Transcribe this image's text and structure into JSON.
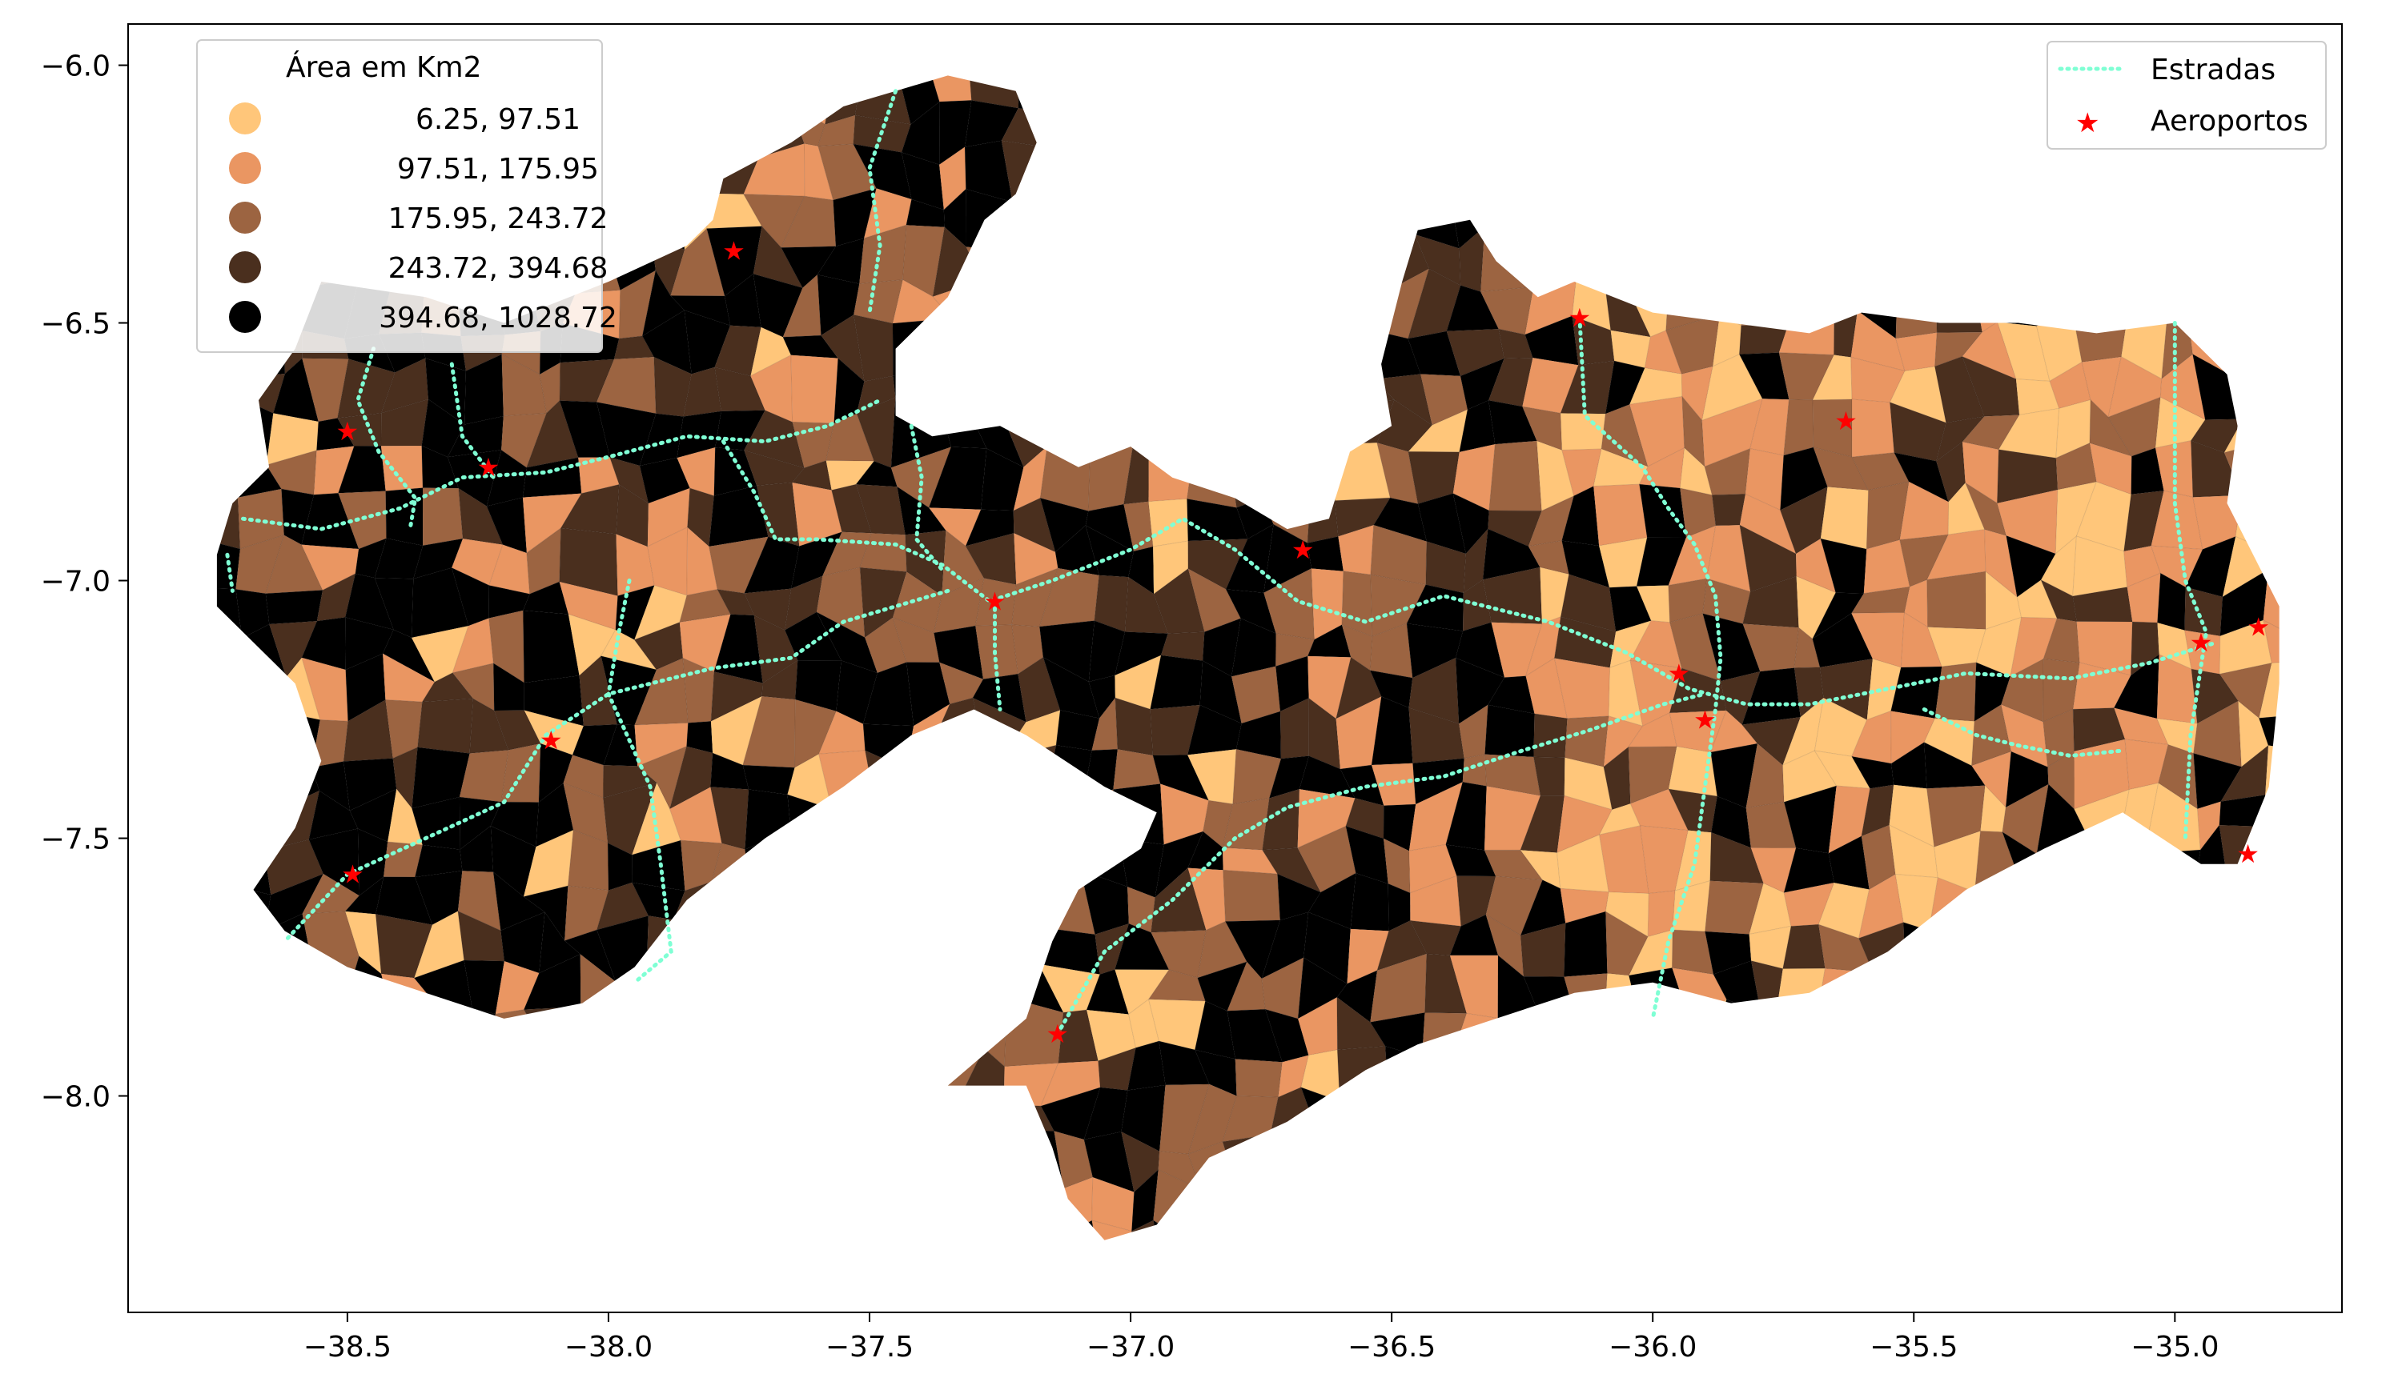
{
  "chart_data": {
    "type": "choropleth-map",
    "x_ticks": [
      -38.5,
      -38.0,
      -37.5,
      -37.0,
      -36.5,
      -36.0,
      -35.5,
      -35.0
    ],
    "x_tick_labels": [
      "−38.5",
      "−38.0",
      "−37.5",
      "−37.0",
      "−36.5",
      "−36.0",
      "−35.5",
      "−35.0"
    ],
    "y_ticks": [
      -6.0,
      -6.5,
      -7.0,
      -7.5,
      -8.0
    ],
    "y_tick_labels": [
      "−6.0",
      "−6.5",
      "−7.0",
      "−7.5",
      "−8.0"
    ],
    "xlim": [
      -38.92,
      -34.68
    ],
    "ylim": [
      -8.42,
      -5.92
    ],
    "colormap": "copper_r",
    "classes_legend": {
      "title": "Área em Km2",
      "position": "top-left",
      "items": [
        {
          "label": "6.25,   97.51",
          "color": "#ffc67a"
        },
        {
          "label": "97.51,  175.95",
          "color": "#ea9662"
        },
        {
          "label": "175.95,  243.72",
          "color": "#9c6441"
        },
        {
          "label": "243.72,  394.68",
          "color": "#4a2f1e"
        },
        {
          "label": "394.68, 1028.72",
          "color": "#000000"
        }
      ]
    },
    "layers_legend": {
      "position": "top-right",
      "items": [
        {
          "label": "Estradas",
          "kind": "dotted-line",
          "color": "#7fffd4"
        },
        {
          "label": "Aeroportos",
          "kind": "star",
          "color": "#ff0000"
        }
      ]
    },
    "airports": [
      {
        "lon": -37.76,
        "lat": -6.36
      },
      {
        "lon": -38.5,
        "lat": -6.71
      },
      {
        "lon": -38.23,
        "lat": -6.78
      },
      {
        "lon": -37.26,
        "lat": -7.04
      },
      {
        "lon": -36.67,
        "lat": -6.94
      },
      {
        "lon": -36.14,
        "lat": -6.49
      },
      {
        "lon": -35.63,
        "lat": -6.69
      },
      {
        "lon": -35.95,
        "lat": -7.18
      },
      {
        "lon": -35.9,
        "lat": -7.27
      },
      {
        "lon": -38.11,
        "lat": -7.31
      },
      {
        "lon": -38.49,
        "lat": -7.57
      },
      {
        "lon": -37.14,
        "lat": -7.88
      },
      {
        "lon": -34.95,
        "lat": -7.12
      },
      {
        "lon": -34.84,
        "lat": -7.09
      },
      {
        "lon": -34.86,
        "lat": -7.53
      }
    ],
    "roads": [
      [
        [
          -38.7,
          -6.88
        ],
        [
          -38.55,
          -6.9
        ],
        [
          -38.4,
          -6.86
        ],
        [
          -38.28,
          -6.8
        ],
        [
          -38.12,
          -6.79
        ],
        [
          -38.0,
          -6.76
        ],
        [
          -37.85,
          -6.72
        ],
        [
          -37.7,
          -6.73
        ],
        [
          -37.58,
          -6.7
        ],
        [
          -37.48,
          -6.65
        ]
      ],
      [
        [
          -38.73,
          -6.95
        ],
        [
          -38.72,
          -7.02
        ]
      ],
      [
        [
          -38.45,
          -6.55
        ],
        [
          -38.48,
          -6.65
        ],
        [
          -38.44,
          -6.75
        ],
        [
          -38.37,
          -6.84
        ],
        [
          -38.38,
          -6.9
        ]
      ],
      [
        [
          -38.3,
          -6.58
        ],
        [
          -38.28,
          -6.72
        ],
        [
          -38.22,
          -6.8
        ]
      ],
      [
        [
          -37.78,
          -6.73
        ],
        [
          -37.72,
          -6.83
        ],
        [
          -37.68,
          -6.92
        ],
        [
          -37.6,
          -6.92
        ],
        [
          -37.45,
          -6.93
        ],
        [
          -37.36,
          -6.97
        ],
        [
          -37.27,
          -7.04
        ],
        [
          -37.15,
          -7.0
        ],
        [
          -37.0,
          -6.94
        ],
        [
          -36.9,
          -6.88
        ],
        [
          -36.8,
          -6.94
        ],
        [
          -36.68,
          -7.04
        ],
        [
          -36.55,
          -7.08
        ],
        [
          -36.4,
          -7.03
        ],
        [
          -36.2,
          -7.08
        ],
        [
          -36.05,
          -7.14
        ],
        [
          -35.93,
          -7.21
        ],
        [
          -35.82,
          -7.24
        ],
        [
          -35.7,
          -7.24
        ],
        [
          -35.55,
          -7.21
        ],
        [
          -35.4,
          -7.18
        ],
        [
          -35.2,
          -7.19
        ],
        [
          -35.05,
          -7.16
        ],
        [
          -34.92,
          -7.12
        ]
      ],
      [
        [
          -37.42,
          -6.7
        ],
        [
          -37.4,
          -6.8
        ],
        [
          -37.41,
          -6.92
        ],
        [
          -37.36,
          -6.98
        ]
      ],
      [
        [
          -37.35,
          -7.02
        ],
        [
          -37.55,
          -7.08
        ],
        [
          -37.65,
          -7.15
        ],
        [
          -37.8,
          -7.17
        ],
        [
          -37.92,
          -7.2
        ],
        [
          -38.0,
          -7.22
        ],
        [
          -38.12,
          -7.3
        ],
        [
          -38.2,
          -7.43
        ],
        [
          -38.35,
          -7.5
        ],
        [
          -38.5,
          -7.57
        ],
        [
          -38.62,
          -7.7
        ]
      ],
      [
        [
          -37.96,
          -7.0
        ],
        [
          -37.98,
          -7.1
        ],
        [
          -38.0,
          -7.22
        ],
        [
          -37.92,
          -7.4
        ],
        [
          -37.9,
          -7.55
        ],
        [
          -37.88,
          -7.72
        ],
        [
          -37.95,
          -7.78
        ]
      ],
      [
        [
          -37.26,
          -7.04
        ],
        [
          -37.26,
          -7.14
        ],
        [
          -37.25,
          -7.25
        ]
      ],
      [
        [
          -37.14,
          -7.88
        ],
        [
          -37.05,
          -7.72
        ],
        [
          -36.92,
          -7.62
        ],
        [
          -36.8,
          -7.5
        ],
        [
          -36.7,
          -7.44
        ],
        [
          -36.55,
          -7.4
        ],
        [
          -36.4,
          -7.38
        ],
        [
          -36.25,
          -7.33
        ],
        [
          -36.12,
          -7.29
        ],
        [
          -35.98,
          -7.24
        ],
        [
          -35.9,
          -7.22
        ]
      ],
      [
        [
          -36.14,
          -6.49
        ],
        [
          -36.13,
          -6.68
        ],
        [
          -36.02,
          -6.78
        ],
        [
          -35.97,
          -6.86
        ],
        [
          -35.92,
          -6.93
        ],
        [
          -35.88,
          -7.03
        ],
        [
          -35.87,
          -7.15
        ],
        [
          -35.88,
          -7.25
        ],
        [
          -35.9,
          -7.4
        ],
        [
          -35.92,
          -7.55
        ],
        [
          -35.97,
          -7.7
        ],
        [
          -36.0,
          -7.85
        ]
      ],
      [
        [
          -35.0,
          -6.5
        ],
        [
          -35.0,
          -6.7
        ],
        [
          -35.0,
          -6.85
        ],
        [
          -34.98,
          -7.0
        ],
        [
          -34.94,
          -7.1
        ],
        [
          -34.97,
          -7.3
        ],
        [
          -34.98,
          -7.5
        ]
      ],
      [
        [
          -35.48,
          -7.25
        ],
        [
          -35.38,
          -7.3
        ],
        [
          -35.3,
          -7.32
        ],
        [
          -35.2,
          -7.34
        ],
        [
          -35.1,
          -7.33
        ]
      ],
      [
        [
          -37.45,
          -6.05
        ],
        [
          -37.5,
          -6.2
        ],
        [
          -37.48,
          -6.35
        ],
        [
          -37.5,
          -6.48
        ]
      ]
    ]
  }
}
